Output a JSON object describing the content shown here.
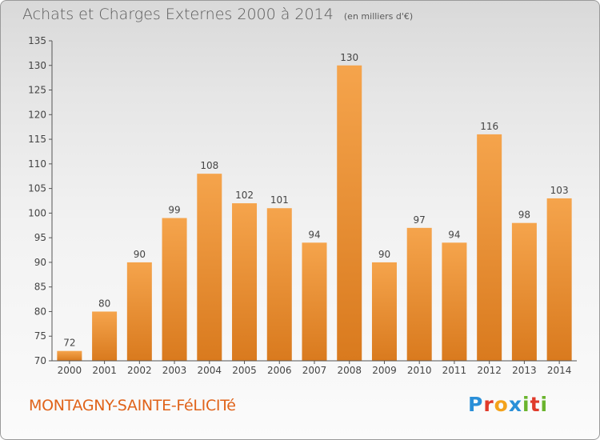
{
  "title": "Achats et Charges Externes 2000 à 2014",
  "unit_note": "(en milliers d'€)",
  "commune": "MONTAGNY-SAINTE-FéLICITé",
  "brand": {
    "letters": [
      "P",
      "r",
      "o",
      "x",
      "i",
      "t",
      "i"
    ],
    "colors": [
      "#2a8fd8",
      "#e03a2a",
      "#f3a21b",
      "#2a8fd8",
      "#6ab42d",
      "#e03a2a",
      "#6ab42d"
    ]
  },
  "colors": {
    "bar_light": "#f5a44c",
    "bar_dark": "#d97a1e",
    "accent": "#e0631a"
  },
  "chart_data": {
    "type": "bar",
    "categories": [
      "2000",
      "2001",
      "2002",
      "2003",
      "2004",
      "2005",
      "2006",
      "2007",
      "2008",
      "2009",
      "2010",
      "2011",
      "2012",
      "2013",
      "2014"
    ],
    "values": [
      72,
      80,
      90,
      99,
      108,
      102,
      101,
      94,
      130,
      90,
      97,
      94,
      116,
      98,
      103
    ],
    "ylim": [
      70,
      135
    ],
    "yticks": [
      70,
      75,
      80,
      85,
      90,
      95,
      100,
      105,
      110,
      115,
      120,
      125,
      130,
      135
    ],
    "grid": false,
    "data_labels": true
  }
}
